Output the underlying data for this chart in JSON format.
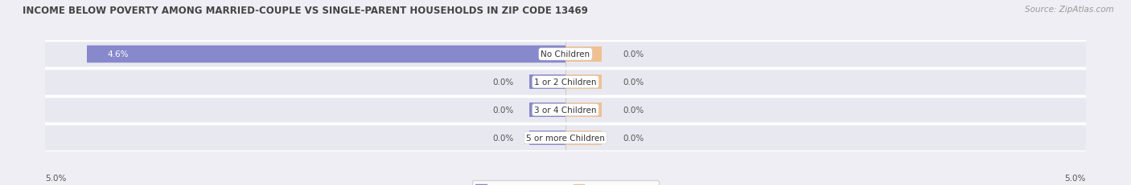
{
  "title": "INCOME BELOW POVERTY AMONG MARRIED-COUPLE VS SINGLE-PARENT HOUSEHOLDS IN ZIP CODE 13469",
  "source": "Source: ZipAtlas.com",
  "categories": [
    "No Children",
    "1 or 2 Children",
    "3 or 4 Children",
    "5 or more Children"
  ],
  "married_values": [
    4.6,
    0.0,
    0.0,
    0.0
  ],
  "single_values": [
    0.0,
    0.0,
    0.0,
    0.0
  ],
  "married_color": "#8888cc",
  "single_color": "#f0c090",
  "background_color": "#eeeef4",
  "bar_bg_color": "#e2e2ea",
  "row_bg_color": "#e8e8f0",
  "axis_limit": 5.0,
  "bar_height": 0.62,
  "title_fontsize": 8.5,
  "source_fontsize": 7.5,
  "value_fontsize": 7.5,
  "category_fontsize": 7.5,
  "legend_fontsize": 8
}
